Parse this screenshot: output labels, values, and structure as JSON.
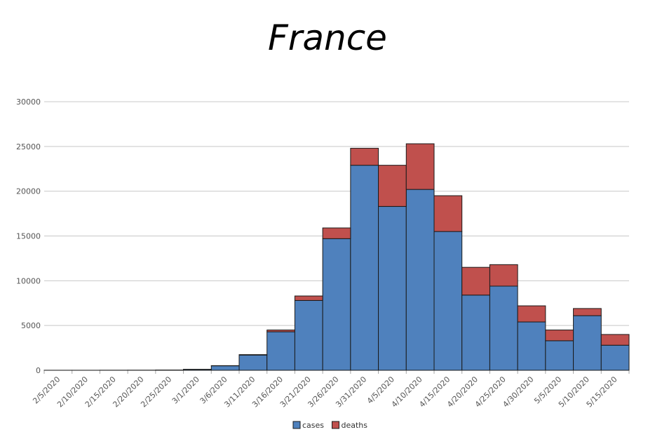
{
  "chart_data": {
    "type": "bar",
    "stacked": true,
    "title": "France",
    "xlabel": "",
    "ylabel": "",
    "ylim": [
      0,
      30000
    ],
    "yticks": [
      0,
      5000,
      10000,
      15000,
      20000,
      25000,
      30000
    ],
    "grid": true,
    "legend_position": "bottom",
    "categories": [
      "2/5/2020",
      "2/10/2020",
      "2/15/2020",
      "2/20/2020",
      "2/25/2020",
      "3/1/2020",
      "3/6/2020",
      "3/11/2020",
      "3/16/2020",
      "3/21/2020",
      "3/26/2020",
      "3/31/2020",
      "4/5/2020",
      "4/10/2020",
      "4/15/2020",
      "4/20/2020",
      "4/25/2020",
      "4/30/2020",
      "5/5/2020",
      "5/10/2020",
      "5/15/2020"
    ],
    "series": [
      {
        "name": "cases",
        "color": "#4f81bd",
        "values": [
          5,
          5,
          10,
          15,
          30,
          100,
          500,
          1700,
          4300,
          7800,
          14700,
          22900,
          18300,
          20200,
          15500,
          8400,
          9400,
          5400,
          3300,
          6100,
          2800
        ]
      },
      {
        "name": "deaths",
        "color": "#c0504d",
        "values": [
          0,
          0,
          0,
          0,
          0,
          5,
          20,
          50,
          200,
          500,
          1200,
          1900,
          4600,
          5100,
          4000,
          3100,
          2400,
          1800,
          1200,
          800,
          1200
        ]
      }
    ]
  }
}
